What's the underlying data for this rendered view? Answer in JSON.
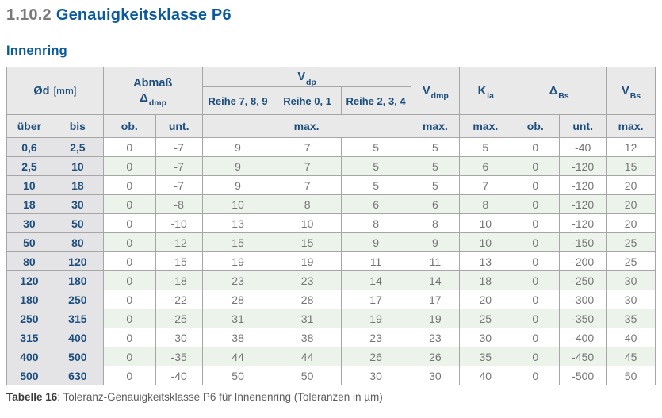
{
  "heading": {
    "number": "1.10.2",
    "title": "Genauigkeitsklasse P6",
    "subtitle": "Innenring"
  },
  "caption": {
    "label": "Tabelle 16",
    "rest": ": Toleranz-Genauigkeitsklasse P6 für Innenenring (Toleranzen in µm)"
  },
  "table": {
    "groups": {
      "diameter_symbol": "Ød",
      "diameter_unit": "[mm]",
      "abmass_line1": "Abmaß",
      "abmass_symbol": "Δ",
      "abmass_sub": "dmp",
      "vdp_symbol": "V",
      "vdp_sub": "dp",
      "vdmp_symbol": "V",
      "vdmp_sub": "dmp",
      "kia_symbol": "K",
      "kia_sub": "ia",
      "dbs_symbol": "Δ",
      "dbs_sub": "Bs",
      "vbs_symbol": "V",
      "vbs_sub": "Bs"
    },
    "reihe": [
      "Reihe 7, 8, 9",
      "Reihe 0, 1",
      "Reihe 2, 3, 4"
    ],
    "labels": {
      "ueber": "über",
      "bis": "bis",
      "ob": "ob.",
      "unt": "unt.",
      "max": "max."
    },
    "rows": [
      [
        "0,6",
        "2,5",
        "0",
        "-7",
        "9",
        "7",
        "5",
        "5",
        "5",
        "0",
        "-40",
        "12"
      ],
      [
        "2,5",
        "10",
        "0",
        "-7",
        "9",
        "7",
        "5",
        "5",
        "6",
        "0",
        "-120",
        "15"
      ],
      [
        "10",
        "18",
        "0",
        "-7",
        "9",
        "7",
        "5",
        "5",
        "7",
        "0",
        "-120",
        "20"
      ],
      [
        "18",
        "30",
        "0",
        "-8",
        "10",
        "8",
        "6",
        "6",
        "8",
        "0",
        "-120",
        "20"
      ],
      [
        "30",
        "50",
        "0",
        "-10",
        "13",
        "10",
        "8",
        "8",
        "10",
        "0",
        "-120",
        "20"
      ],
      [
        "50",
        "80",
        "0",
        "-12",
        "15",
        "15",
        "9",
        "9",
        "10",
        "0",
        "-150",
        "25"
      ],
      [
        "80",
        "120",
        "0",
        "-15",
        "19",
        "19",
        "11",
        "11",
        "13",
        "0",
        "-200",
        "25"
      ],
      [
        "120",
        "180",
        "0",
        "-18",
        "23",
        "23",
        "14",
        "14",
        "18",
        "0",
        "-250",
        "30"
      ],
      [
        "180",
        "250",
        "0",
        "-22",
        "28",
        "28",
        "17",
        "17",
        "20",
        "0",
        "-300",
        "30"
      ],
      [
        "250",
        "315",
        "0",
        "-25",
        "31",
        "31",
        "19",
        "19",
        "25",
        "0",
        "-350",
        "35"
      ],
      [
        "315",
        "400",
        "0",
        "-30",
        "38",
        "38",
        "23",
        "23",
        "30",
        "0",
        "-400",
        "40"
      ],
      [
        "400",
        "500",
        "0",
        "-35",
        "44",
        "44",
        "26",
        "26",
        "35",
        "0",
        "-450",
        "45"
      ],
      [
        "500",
        "630",
        "0",
        "-40",
        "50",
        "50",
        "30",
        "30",
        "40",
        "0",
        "-500",
        "50"
      ]
    ],
    "colors": {
      "heading_blue": "#0a5a9c",
      "heading_gray": "#7a7a7a",
      "table_text_blue": "#1d4e7d",
      "header_bg": "#e9e9e9",
      "dim_column_bg": "#e4e4e6",
      "alt_row_green": "#ecf3eb",
      "value_gray": "#757575",
      "border_gray": "#a6a6a6"
    }
  }
}
